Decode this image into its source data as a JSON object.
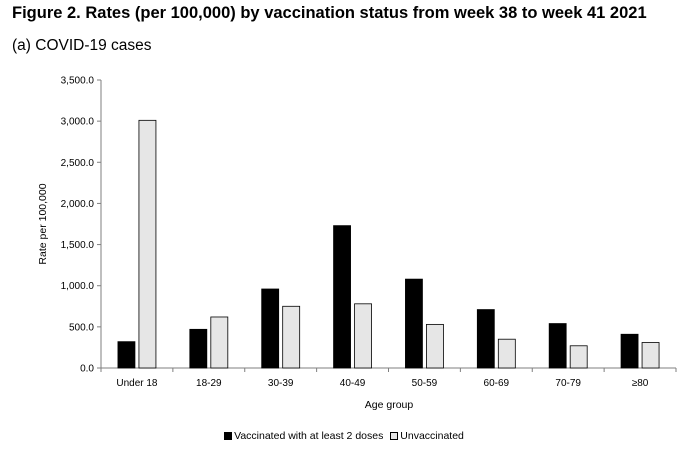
{
  "title": "Figure 2. Rates (per 100,000) by vaccination status from week 38 to week 41 2021",
  "subtitle": "(a) COVID-19 cases",
  "colors": {
    "vaccinated": "#000000",
    "unvaccinated": "#e6e6e6",
    "axis": "#7f7f7f"
  },
  "chart_data": {
    "type": "bar",
    "xlabel": "Age group",
    "ylabel": "Rate per 100,000",
    "ylim": [
      0,
      3500
    ],
    "yticks": [
      0,
      500,
      1000,
      1500,
      2000,
      2500,
      3000,
      3500
    ],
    "ytick_labels": [
      "0.0",
      "500.0",
      "1,000.0",
      "1,500.0",
      "2,000.0",
      "2,500.0",
      "3,000.0",
      "3,500.0"
    ],
    "grid": false,
    "legend_position": "bottom",
    "categories": [
      "Under 18",
      "18-29",
      "30-39",
      "40-49",
      "50-59",
      "60-69",
      "70-79",
      "≥80"
    ],
    "series": [
      {
        "name": "Vaccinated with at least 2 doses",
        "values": [
          320,
          470,
          960,
          1730,
          1080,
          710,
          540,
          410
        ]
      },
      {
        "name": "Unvaccinated",
        "values": [
          3010,
          620,
          750,
          780,
          530,
          350,
          270,
          310
        ]
      }
    ]
  }
}
